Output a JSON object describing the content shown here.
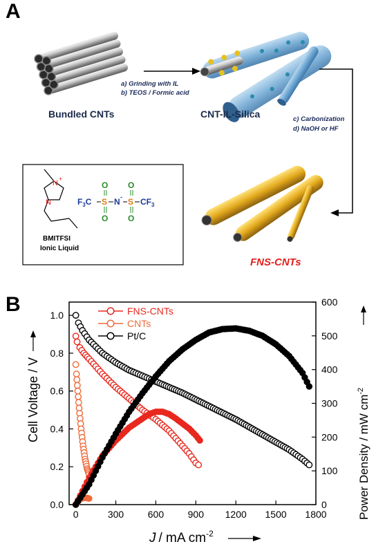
{
  "panel_a": {
    "letter": "A",
    "bundled_label": "Bundled CNTs",
    "composite_label": "CNT-IL-Silica",
    "product_label": "FNS-CNTs",
    "steps_1": [
      "a) Grinding with IL",
      "b) TEOS / Formic acid"
    ],
    "steps_2": [
      "c) Carbonization",
      "d) NaOH or HF"
    ],
    "ionic_liquid": {
      "methyl": "—",
      "n_plus": "N",
      "plus": "+",
      "n": "N",
      "anion_left": "F",
      "anion_left_sub": "3",
      "anion_left_c": "C",
      "s": "S",
      "o": "O",
      "n_minus": "N",
      "minus": "-",
      "anion_right": "CF",
      "anion_right_sub": "3",
      "name": "BMITFSI",
      "subtitle": "Ionic Liquid"
    },
    "colors": {
      "nitrogen": "#e0201e",
      "sulfur": "#e07a10",
      "oxygen": "#2a8c2a",
      "fluorocarbon": "#1a3a9a",
      "product": "#e0201e"
    }
  },
  "panel_b": {
    "letter": "B"
  },
  "chart_data": {
    "type": "scatter",
    "xlabel_italic": "J",
    "xlabel": "/ mA cm",
    "xlabel_sup": "-2",
    "ylabel": "Cell Voltage / V",
    "y2label": "Power Density / mW cm",
    "y2label_sup": "-2",
    "xlim": [
      -50,
      1800
    ],
    "ylim": [
      0,
      1.07
    ],
    "y2lim": [
      0,
      600
    ],
    "xticks": [
      0,
      300,
      600,
      900,
      1200,
      1500,
      1800
    ],
    "yticks": [
      0.0,
      0.2,
      0.4,
      0.6,
      0.8,
      1.0
    ],
    "y2ticks": [
      0,
      100,
      200,
      300,
      400,
      500,
      600
    ],
    "legend_position": "top-left",
    "series": [
      {
        "name": "FNS-CNTs",
        "color": "#e8281e",
        "marker": "open-circle"
      },
      {
        "name": "CNTs",
        "color": "#ef6a3a",
        "marker": "open-circle"
      },
      {
        "name": "Pt/C",
        "color": "#000000",
        "marker": "open-circle"
      }
    ],
    "polarization": {
      "FNS-CNTs": {
        "x": [
          0,
          10,
          30,
          60,
          100,
          150,
          200,
          300,
          400,
          500,
          600,
          700,
          800,
          850,
          900,
          920
        ],
        "y": [
          0.89,
          0.86,
          0.83,
          0.8,
          0.77,
          0.73,
          0.69,
          0.62,
          0.56,
          0.5,
          0.45,
          0.39,
          0.31,
          0.27,
          0.22,
          0.21
        ]
      },
      "CNTs": {
        "x": [
          0,
          5,
          15,
          25,
          40,
          55,
          70,
          85,
          100
        ],
        "y": [
          0.74,
          0.69,
          0.6,
          0.51,
          0.4,
          0.31,
          0.24,
          0.19,
          0.16
        ]
      },
      "Pt/C": {
        "x": [
          0,
          20,
          50,
          100,
          200,
          300,
          400,
          500,
          600,
          800,
          1000,
          1200,
          1400,
          1600,
          1700,
          1750
        ],
        "y": [
          1.0,
          0.96,
          0.92,
          0.87,
          0.8,
          0.75,
          0.71,
          0.68,
          0.65,
          0.59,
          0.52,
          0.45,
          0.37,
          0.29,
          0.24,
          0.21
        ]
      }
    },
    "power": {
      "FNS-CNTs": {
        "x": [
          0,
          100,
          200,
          300,
          400,
          500,
          550,
          600,
          650,
          700,
          750,
          800,
          850,
          900,
          930
        ],
        "y": [
          0,
          80,
          145,
          190,
          228,
          255,
          268,
          275,
          275,
          268,
          255,
          240,
          225,
          205,
          190
        ]
      },
      "CNTs": {
        "x": [
          0,
          20,
          40,
          60,
          80,
          100
        ],
        "y": [
          0,
          12,
          18,
          20,
          20,
          18
        ]
      },
      "Pt/C": {
        "x": [
          0,
          100,
          200,
          300,
          400,
          500,
          600,
          700,
          800,
          900,
          1000,
          1100,
          1200,
          1300,
          1400,
          1500,
          1600,
          1700,
          1750
        ],
        "y": [
          0,
          60,
          140,
          210,
          275,
          330,
          380,
          425,
          460,
          488,
          510,
          520,
          522,
          515,
          500,
          475,
          440,
          390,
          350
        ]
      }
    }
  }
}
